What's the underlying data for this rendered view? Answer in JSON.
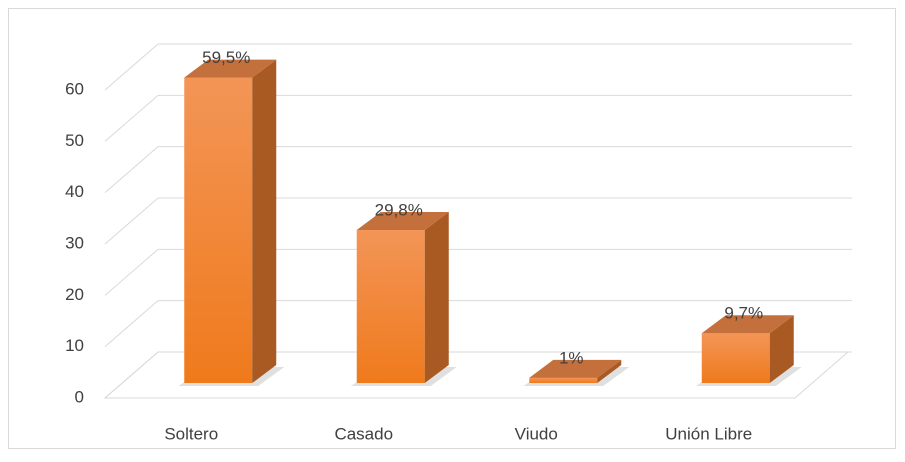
{
  "chart_data": {
    "type": "bar3d",
    "categories": [
      "Soltero",
      "Casado",
      "Viudo",
      "Unión Libre"
    ],
    "values": [
      59.5,
      29.8,
      1,
      9.7
    ],
    "value_labels": [
      "59,5%",
      "29,8%",
      "1%",
      "9,7%"
    ],
    "color": "#f07f22",
    "ylim": [
      0,
      60
    ],
    "yticks": [
      0,
      10,
      20,
      30,
      40,
      50,
      60
    ],
    "grid": true
  }
}
